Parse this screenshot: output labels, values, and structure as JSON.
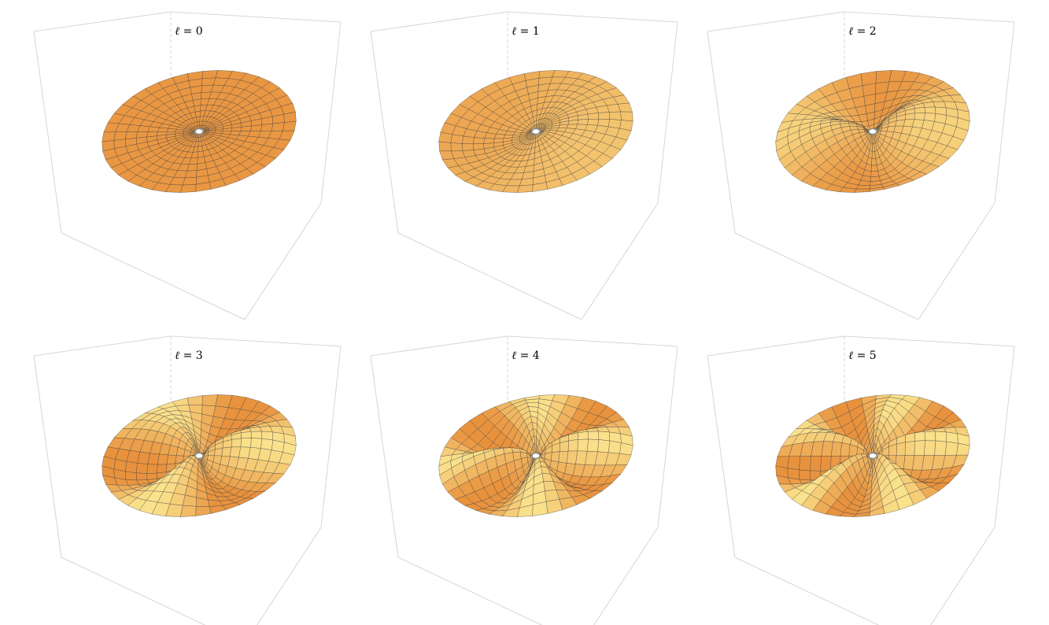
{
  "chart_data": {
    "type": "surface3d",
    "panels": [
      {
        "label_symbol": "ℓ",
        "label_eq": "=",
        "l": 0,
        "label": "ℓ = 0"
      },
      {
        "label_symbol": "ℓ",
        "label_eq": "=",
        "l": 1,
        "label": "ℓ = 1"
      },
      {
        "label_symbol": "ℓ",
        "label_eq": "=",
        "l": 2,
        "label": "ℓ = 2"
      },
      {
        "label_symbol": "ℓ",
        "label_eq": "=",
        "l": 3,
        "label": "ℓ = 3"
      },
      {
        "label_symbol": "ℓ",
        "label_eq": "=",
        "l": 4,
        "label": "ℓ = 4"
      },
      {
        "label_symbol": "ℓ",
        "label_eq": "=",
        "l": 5,
        "label": "ℓ = 5"
      }
    ],
    "grid": true,
    "colors": {
      "surface_dark": "#e8923e",
      "surface_light": "#fff6a0",
      "mesh": "#3a3a3a",
      "box": "#d6d6d6",
      "hole": "#8e8e8e"
    }
  }
}
